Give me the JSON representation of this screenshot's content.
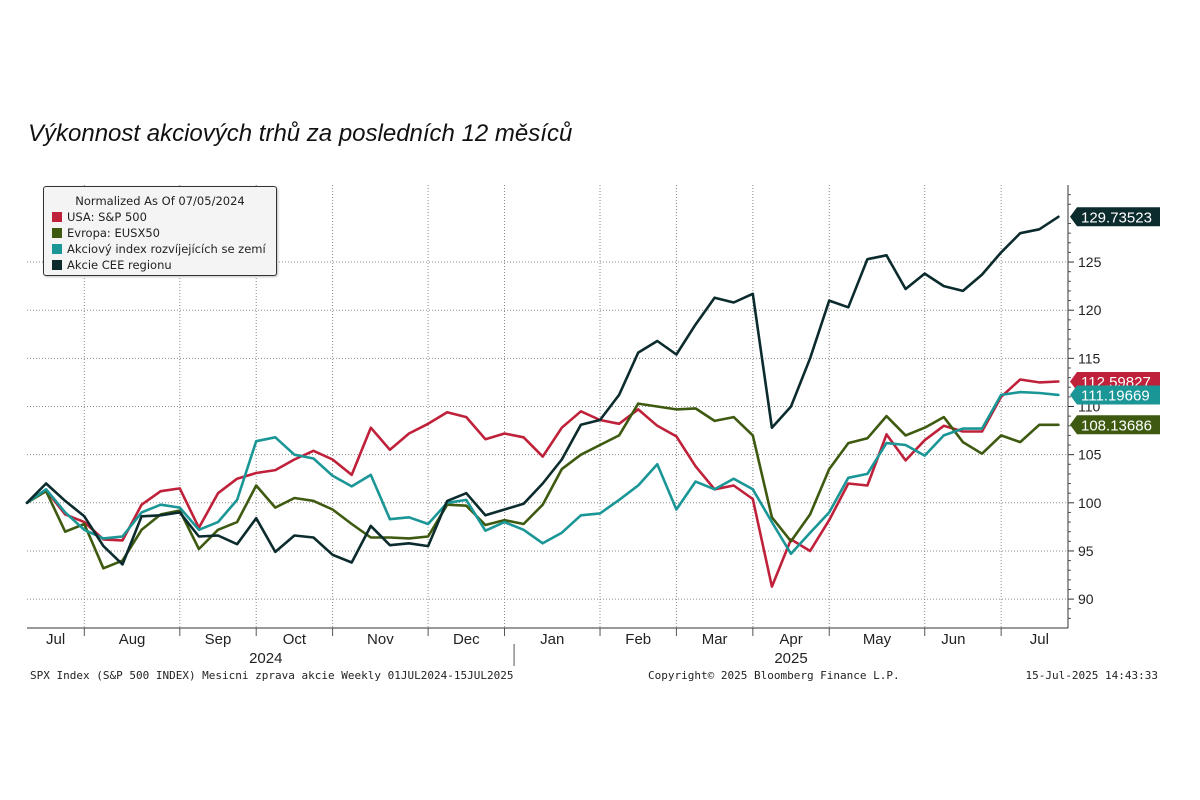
{
  "title": "Výkonnost akciových trhů za posledních 12 měsíců",
  "legend": {
    "header": "Normalized As Of 07/05/2024",
    "items": [
      {
        "label": "USA: S&P 500",
        "color": "#c0213a"
      },
      {
        "label": "Evropa: EUSX50",
        "color": "#3e5a10"
      },
      {
        "label": "Akciový index rozvíjejících se zemí",
        "color": "#1a9696"
      },
      {
        "label": "Akcie CEE regionu",
        "color": "#0c2b2d"
      }
    ]
  },
  "footer": {
    "left": "SPX Index (S&P 500 INDEX) Mesicni zprava akcie  Weekly 01JUL2024-15JUL2025",
    "center": "Copyright© 2025 Bloomberg Finance L.P.",
    "right": "15-Jul-2025 14:43:33"
  },
  "chart_data": {
    "type": "line",
    "ylim": [
      87,
      133
    ],
    "y_ticks": [
      90,
      95,
      100,
      105,
      110,
      115,
      120,
      125
    ],
    "x_range": [
      0,
      54.5
    ],
    "month_labels": [
      {
        "label": "Jul",
        "x": 1.5
      },
      {
        "label": "Aug",
        "x": 5.5
      },
      {
        "label": "Sep",
        "x": 10
      },
      {
        "label": "Oct",
        "x": 14
      },
      {
        "label": "Nov",
        "x": 18.5
      },
      {
        "label": "Dec",
        "x": 23
      },
      {
        "label": "Jan",
        "x": 27.5
      },
      {
        "label": "Feb",
        "x": 32
      },
      {
        "label": "Mar",
        "x": 36
      },
      {
        "label": "Apr",
        "x": 40
      },
      {
        "label": "May",
        "x": 44.5
      },
      {
        "label": "Jun",
        "x": 48.5
      },
      {
        "label": "Jul",
        "x": 53
      }
    ],
    "month_boundaries": [
      3,
      8,
      12,
      16,
      21,
      25,
      30,
      34,
      38,
      42,
      47,
      51
    ],
    "year_labels": [
      {
        "label": "2024",
        "x": 12.5
      },
      {
        "label": "2025",
        "x": 40
      }
    ],
    "year_separator": 25.5,
    "x": [
      0,
      1,
      2,
      3,
      4,
      5,
      6,
      7,
      8,
      9,
      10,
      11,
      12,
      13,
      14,
      15,
      16,
      17,
      18,
      19,
      20,
      21,
      22,
      23,
      24,
      25,
      26,
      27,
      28,
      29,
      30,
      31,
      32,
      33,
      34,
      35,
      36,
      37,
      38,
      39,
      40,
      41,
      42,
      43,
      44,
      45,
      46,
      47,
      48,
      49,
      50,
      51,
      52,
      53,
      54
    ],
    "series": [
      {
        "name": "USA: S&P 500",
        "color": "#c0213a",
        "last_value": "112.59827",
        "values": [
          100,
          101.3,
          98.8,
          98.0,
          96.2,
          96.1,
          99.8,
          101.2,
          101.5,
          97.4,
          101.0,
          102.5,
          103.1,
          103.4,
          104.5,
          105.4,
          104.5,
          102.9,
          107.8,
          105.5,
          107.2,
          108.2,
          109.4,
          108.9,
          106.6,
          107.2,
          106.8,
          104.8,
          107.8,
          109.5,
          108.6,
          108.2,
          109.7,
          108.0,
          106.9,
          103.8,
          101.4,
          101.8,
          100.4,
          91.3,
          96.2,
          95.0,
          98.2,
          102.0,
          101.8,
          107.1,
          104.4,
          106.5,
          108.0,
          107.4,
          107.4,
          111.0,
          112.8,
          112.5,
          112.6
        ]
      },
      {
        "name": "Evropa: EUSX50",
        "color": "#3e5a10",
        "last_value": "108.13686",
        "values": [
          100,
          101.2,
          97.0,
          97.8,
          93.2,
          94.0,
          97.2,
          98.8,
          99.2,
          95.2,
          97.2,
          98.0,
          101.8,
          99.5,
          100.5,
          100.2,
          99.3,
          97.8,
          96.4,
          96.4,
          96.3,
          96.5,
          99.8,
          99.7,
          97.7,
          98.2,
          97.8,
          99.8,
          103.5,
          105.0,
          106.0,
          107.0,
          110.3,
          110.0,
          109.7,
          109.8,
          108.5,
          108.9,
          107.0,
          98.5,
          96.0,
          98.8,
          103.5,
          106.2,
          106.7,
          109.0,
          107.0,
          107.8,
          108.9,
          106.3,
          105.1,
          107.0,
          106.3,
          108.1,
          108.1
        ]
      },
      {
        "name": "Akciový index rozvíjejících se zemí",
        "color": "#1a9696",
        "last_value": "111.19669",
        "values": [
          100,
          101.4,
          99.0,
          97.2,
          96.3,
          96.5,
          99.0,
          99.8,
          99.5,
          97.2,
          98.0,
          100.3,
          106.4,
          106.8,
          105.0,
          104.6,
          102.8,
          101.7,
          102.9,
          98.3,
          98.5,
          97.8,
          100.0,
          100.3,
          97.1,
          98.0,
          97.2,
          95.8,
          96.9,
          98.7,
          98.9,
          100.3,
          101.8,
          104.0,
          99.3,
          102.2,
          101.4,
          102.5,
          101.4,
          98.0,
          94.7,
          96.9,
          99.0,
          102.6,
          103.0,
          106.2,
          106.0,
          104.9,
          107.0,
          107.7,
          107.7,
          111.2,
          111.5,
          111.4,
          111.2
        ]
      },
      {
        "name": "Akcie CEE regionu",
        "color": "#0c2b2d",
        "last_value": "129.73523",
        "values": [
          100,
          102.0,
          100.2,
          98.6,
          95.5,
          93.6,
          98.6,
          98.7,
          99.0,
          96.5,
          96.6,
          95.7,
          98.4,
          94.9,
          96.6,
          96.4,
          94.6,
          93.8,
          97.6,
          95.6,
          95.8,
          95.5,
          100.2,
          101.0,
          98.7,
          99.3,
          99.9,
          102.0,
          104.5,
          108.1,
          108.6,
          111.2,
          115.6,
          116.8,
          115.4,
          118.5,
          121.3,
          120.8,
          121.7,
          107.8,
          110.0,
          115.0,
          121.0,
          120.3,
          125.3,
          125.7,
          122.2,
          123.8,
          122.5,
          122.0,
          123.7,
          126.0,
          128.0,
          128.4,
          129.7
        ]
      }
    ]
  }
}
